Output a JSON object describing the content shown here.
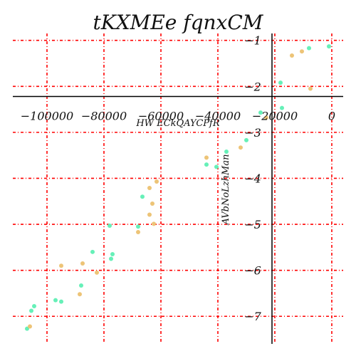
{
  "chart_data": {
    "type": "scatter",
    "title": "tKXMEe fqnxCM",
    "xlabel": "HW ECkQAYCPfR",
    "ylabel": "AVbNoLzhMan",
    "xlim": [
      -112000,
      4000
    ],
    "ylim": [
      -7.6,
      -0.85
    ],
    "xticks": [
      -100000,
      -80000,
      -60000,
      -40000,
      -20000,
      0
    ],
    "xtick_labels": [
      "−100000",
      "−80000",
      "−60000",
      "−40000",
      "−20000",
      "0"
    ],
    "yticks": [
      -1,
      -2,
      -3,
      -4,
      -5,
      -6,
      -7
    ],
    "ytick_labels": [
      "−1",
      "−2",
      "−3",
      "−4",
      "−5",
      "−6",
      "−7"
    ],
    "grid": true,
    "grid_color": "#ff0000",
    "axis_color": "#000000",
    "series": [
      {
        "color": "#66f0b8",
        "points": [
          [
            -107000,
            -7.27
          ],
          [
            -105500,
            -6.88
          ],
          [
            -104500,
            -6.78
          ],
          [
            -97000,
            -6.65
          ],
          [
            -95000,
            -6.68
          ],
          [
            -88000,
            -6.33
          ],
          [
            -84000,
            -5.6
          ],
          [
            -78000,
            -5.03
          ],
          [
            -77000,
            -5.65
          ],
          [
            -77500,
            -5.75
          ],
          [
            -68000,
            -5.05
          ],
          [
            -66500,
            -4.4
          ],
          [
            -44000,
            -3.7
          ],
          [
            -40500,
            -3.75
          ],
          [
            -37000,
            -3.42
          ],
          [
            -30000,
            -3.17
          ],
          [
            -25000,
            -2.57
          ],
          [
            -18000,
            -1.92
          ],
          [
            -17500,
            -2.47
          ],
          [
            -8000,
            -1.17
          ],
          [
            -1000,
            -1.13
          ]
        ]
      },
      {
        "color": "#edc477",
        "points": [
          [
            -106000,
            -7.22
          ],
          [
            -95000,
            -5.9
          ],
          [
            -88500,
            -6.52
          ],
          [
            -87500,
            -5.85
          ],
          [
            -82500,
            -6.05
          ],
          [
            -68000,
            -5.17
          ],
          [
            -64000,
            -4.79
          ],
          [
            -64000,
            -4.21
          ],
          [
            -63000,
            -4.55
          ],
          [
            -62500,
            -4.99
          ],
          [
            -61500,
            -4.07
          ],
          [
            -44000,
            -3.55
          ],
          [
            -32000,
            -3.33
          ],
          [
            -23000,
            -2.68
          ],
          [
            -14000,
            -1.33
          ],
          [
            -10500,
            -1.24
          ],
          [
            -7500,
            -2.05
          ]
        ]
      }
    ]
  }
}
